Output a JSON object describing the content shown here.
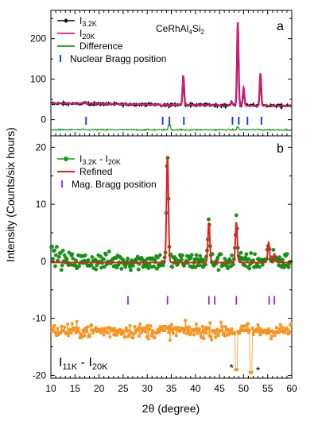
{
  "chart_data": [
    {
      "panel_label": "a",
      "type": "line",
      "compound_label": "CeRhAl",
      "compound_sub1": "4",
      "compound_mid": "Si",
      "compound_sub2": "2",
      "ylabel_line1": "Intensity (Counts/six hours)",
      "ylim": [
        -40,
        270
      ],
      "xlim": [
        10,
        60
      ],
      "yticks": [
        0,
        100,
        200
      ],
      "grid": false,
      "legend": "top-right",
      "legend_entries": [
        {
          "main": "I",
          "sub": "3.2K",
          "color": "#000000",
          "marker": "diamond"
        },
        {
          "main": "I",
          "sub": "20K",
          "color": "#e8177d",
          "marker": "line"
        },
        {
          "main": "Difference",
          "sub": "",
          "color": "#139b13",
          "marker": "line"
        },
        {
          "main": "Nuclear Bragg position",
          "sub": "",
          "color": "#1f3fd6",
          "marker": "tick"
        }
      ],
      "background_level": 40,
      "peaks": [
        {
          "x": 17.0,
          "y": 45
        },
        {
          "x": 33.0,
          "y": 35
        },
        {
          "x": 34.5,
          "y": 35
        },
        {
          "x": 37.5,
          "y": 112
        },
        {
          "x": 47.5,
          "y": 50
        },
        {
          "x": 48.8,
          "y": 245
        },
        {
          "x": 50.0,
          "y": 85
        },
        {
          "x": 53.5,
          "y": 120
        }
      ],
      "difference_offset": -25,
      "bragg_positions_nuclear": [
        17.3,
        33.2,
        34.6,
        37.6,
        47.7,
        49.0,
        50.8,
        53.7
      ]
    },
    {
      "panel_label": "b",
      "type": "scatter",
      "ylabel": "Intensity (Counts/six hours)",
      "xlabel": "2θ (degree)",
      "xlim": [
        10,
        60
      ],
      "ylim": [
        -20.5,
        22
      ],
      "xticks": [
        10,
        15,
        20,
        25,
        30,
        35,
        40,
        45,
        50,
        55,
        60
      ],
      "yticks": [
        -20,
        -10,
        0,
        10,
        20
      ],
      "grid": false,
      "legend": "top-left",
      "legend_entries": [
        {
          "main": "I",
          "sub": "3.2K",
          "mid": " - I",
          "sub2": "20K",
          "color": "#139b13",
          "marker": "circle"
        },
        {
          "main": "Refined",
          "sub": "",
          "color": "#e02020",
          "marker": "line"
        },
        {
          "main": "Mag. Bragg position",
          "sub": "",
          "color": "#8a2be2",
          "marker": "tick"
        }
      ],
      "series_difference_label": {
        "main": "I",
        "sub": "11K",
        "mid": " - I",
        "sub2": "20K"
      },
      "magnetic_peaks": [
        {
          "x": 34.2,
          "y": 18.5
        },
        {
          "x": 42.8,
          "y": 7.0
        },
        {
          "x": 48.5,
          "y": 7.0
        },
        {
          "x": 55.2,
          "y": 3.5
        },
        {
          "x": 56.4,
          "y": 1.5
        }
      ],
      "bragg_positions_magnetic": [
        26.0,
        34.2,
        42.8,
        44.0,
        48.5,
        55.3,
        56.4
      ],
      "orange_baseline": -12.2,
      "orange_dips": [
        {
          "x": 48.5,
          "y": -19.0
        },
        {
          "x": 51.5,
          "y": -19.5
        }
      ],
      "asterisks": [
        {
          "x": 47.5,
          "y": -18.5,
          "text": "*"
        },
        {
          "x": 53.0,
          "y": -19.0,
          "text": "*"
        }
      ],
      "colors": {
        "green": "#139b13",
        "red": "#e02020",
        "orange": "#f7931e",
        "purple": "#8a2be2"
      }
    }
  ]
}
